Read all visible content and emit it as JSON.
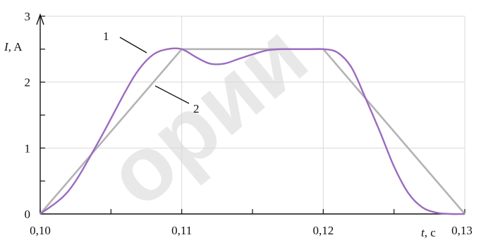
{
  "chart_data": {
    "type": "line",
    "x_axis": {
      "label_var": "t",
      "label_unit": ", c",
      "range": [
        0.1,
        0.13
      ],
      "ticks": [
        0.1,
        0.11,
        0.12,
        0.13
      ],
      "tick_labels": [
        "0,10",
        "0,11",
        "0,12",
        "0,13"
      ]
    },
    "y_axis": {
      "label_var": "I",
      "label_unit": ", A",
      "range": [
        0,
        3
      ],
      "ticks": [
        0,
        1,
        2,
        3
      ],
      "tick_labels": [
        "0",
        "1",
        "2",
        "3"
      ]
    },
    "grid": true,
    "series": [
      {
        "name": "1",
        "color": "#9b6bbf",
        "x": [
          0.1,
          0.102,
          0.104,
          0.106,
          0.107,
          0.108,
          0.109,
          0.11,
          0.111,
          0.112,
          0.113,
          0.114,
          0.115,
          0.116,
          0.117,
          0.118,
          0.119,
          0.12,
          0.121,
          0.122,
          0.123,
          0.124,
          0.125,
          0.126,
          0.127,
          0.128,
          0.129,
          0.13
        ],
        "y": [
          0.0,
          0.35,
          1.05,
          1.85,
          2.2,
          2.42,
          2.5,
          2.5,
          2.38,
          2.28,
          2.28,
          2.35,
          2.42,
          2.48,
          2.5,
          2.5,
          2.5,
          2.5,
          2.45,
          2.22,
          1.75,
          1.25,
          0.72,
          0.32,
          0.1,
          0.02,
          0.0,
          0.0
        ]
      },
      {
        "name": "2",
        "color": "#b3b3b3",
        "x": [
          0.1,
          0.11,
          0.12,
          0.13
        ],
        "y": [
          0.0,
          2.5,
          2.5,
          0.0
        ]
      }
    ],
    "annotations": [
      "1",
      "2"
    ],
    "watermark": "ории"
  }
}
